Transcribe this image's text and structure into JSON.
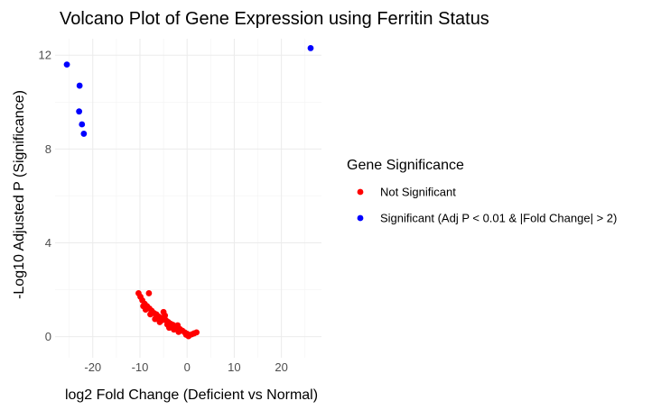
{
  "chart_data": {
    "type": "scatter",
    "title": "Volcano Plot of Gene Expression using Ferritin Status",
    "xlabel": "log2 Fold Change (Deficient vs Normal)",
    "ylabel": "-Log10 Adjusted P (Significance)",
    "xlim": [
      -28,
      28.5
    ],
    "ylim": [
      -0.9,
      12.7
    ],
    "x_ticks": [
      -20,
      -10,
      0,
      10,
      20
    ],
    "x_tick_labels": [
      "-20",
      "-10",
      "0",
      "10",
      "20"
    ],
    "y_ticks": [
      0,
      4,
      8,
      12
    ],
    "y_tick_labels": [
      "0",
      "4",
      "8",
      "12"
    ],
    "grid": true,
    "legend": {
      "title": "Gene Significance",
      "position": "right"
    },
    "series": [
      {
        "name": "Not Significant",
        "color": "#ff0000",
        "points": [
          [
            -10.3,
            1.85
          ],
          [
            -9.9,
            1.7
          ],
          [
            -8.1,
            1.85
          ],
          [
            -9.5,
            1.55
          ],
          [
            -9.0,
            1.4
          ],
          [
            -8.5,
            1.3
          ],
          [
            -8.0,
            1.2
          ],
          [
            -7.5,
            1.1
          ],
          [
            -7.0,
            1.0
          ],
          [
            -6.5,
            0.95
          ],
          [
            -6.0,
            0.85
          ],
          [
            -5.5,
            0.8
          ],
          [
            -5.0,
            1.05
          ],
          [
            -4.7,
            0.9
          ],
          [
            -4.5,
            0.7
          ],
          [
            -4.0,
            0.62
          ],
          [
            -3.5,
            0.55
          ],
          [
            -3.0,
            0.5
          ],
          [
            -2.5,
            0.42
          ],
          [
            -2.0,
            0.48
          ],
          [
            -1.5,
            0.32
          ],
          [
            -1.0,
            0.25
          ],
          [
            -0.5,
            0.18
          ],
          [
            0.0,
            0.12
          ],
          [
            0.5,
            0.06
          ],
          [
            1.0,
            0.1
          ],
          [
            1.5,
            0.14
          ],
          [
            2.0,
            0.18
          ],
          [
            0.3,
            0.02
          ],
          [
            -0.2,
            0.08
          ],
          [
            -6.8,
            0.75
          ],
          [
            -5.8,
            0.62
          ],
          [
            -3.8,
            0.38
          ],
          [
            -2.8,
            0.3
          ],
          [
            -1.8,
            0.2
          ],
          [
            -7.8,
            0.95
          ],
          [
            -8.8,
            1.15
          ],
          [
            -9.3,
            1.3
          ],
          [
            -4.2,
            0.52
          ],
          [
            -5.3,
            0.7
          ]
        ]
      },
      {
        "name": "Significant (Adj P < 0.01 & |Fold Change| > 2)",
        "color": "#0000ff",
        "points": [
          [
            -25.5,
            11.6
          ],
          [
            -22.8,
            10.7
          ],
          [
            -22.9,
            9.6
          ],
          [
            -22.3,
            9.05
          ],
          [
            -21.9,
            8.65
          ],
          [
            26.2,
            12.3
          ]
        ]
      }
    ]
  }
}
